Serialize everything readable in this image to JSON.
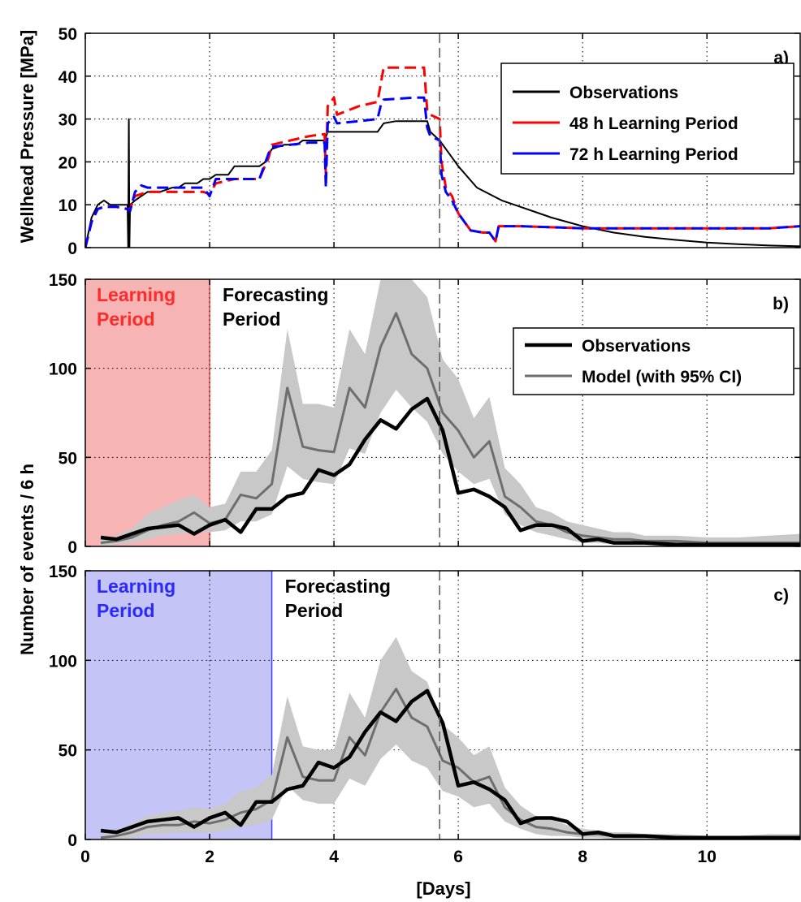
{
  "chart_data": {
    "type": "line",
    "xlabel": "[Days]",
    "x_ticks": [
      0,
      2,
      4,
      6,
      8,
      10
    ],
    "xlim": [
      0,
      11.5
    ],
    "forecast_marker_day": 5.7,
    "panels": [
      {
        "id": "a",
        "tag": "a)",
        "ylabel": "Wellhead Pressure [MPa]",
        "ylim": [
          0,
          50
        ],
        "y_ticks": [
          0,
          10,
          20,
          30,
          40,
          50
        ],
        "legend_position": "top-right",
        "series": [
          {
            "name": "Observations",
            "color": "#000000",
            "style": "solid",
            "x": [
              0,
              0.1,
              0.2,
              0.3,
              0.4,
              0.5,
              0.6,
              0.68,
              0.69,
              0.7,
              0.71,
              0.72,
              0.8,
              0.9,
              1.0,
              1.2,
              1.4,
              1.5,
              1.6,
              1.8,
              1.9,
              2.0,
              2.1,
              2.3,
              2.4,
              2.6,
              2.8,
              2.9,
              3.0,
              3.2,
              3.4,
              3.5,
              3.7,
              3.85,
              3.9,
              4.0,
              4.2,
              4.4,
              4.5,
              4.7,
              4.8,
              5.0,
              5.2,
              5.4,
              5.5,
              5.55,
              5.7,
              5.9,
              6.0,
              6.3,
              6.7,
              7.0,
              7.5,
              8.0,
              8.5,
              9.0,
              9.5,
              10.0,
              10.5,
              11.0,
              11.5
            ],
            "y": [
              0,
              7,
              10,
              11,
              10,
              10,
              10,
              10,
              0,
              30,
              0,
              10,
              11,
              12,
              13,
              13,
              14,
              14,
              15,
              15,
              16,
              16,
              17,
              17,
              19,
              19,
              19,
              20,
              23,
              24,
              24,
              25,
              25,
              25,
              27,
              27,
              27,
              27,
              27,
              27,
              29,
              29.5,
              29.5,
              29.5,
              29.5,
              27,
              25,
              21,
              19,
              14,
              11,
              9.5,
              7,
              5,
              3.5,
              2.5,
              1.8,
              1.2,
              0.8,
              0.5,
              0.3
            ]
          },
          {
            "name": "48 h Learning Period",
            "color": "#ff0000",
            "style": "dashed",
            "x": [
              0,
              0.1,
              0.2,
              0.3,
              0.5,
              0.68,
              0.72,
              0.8,
              1.0,
              1.4,
              1.9,
              2.0,
              2.1,
              2.4,
              2.8,
              2.95,
              3.0,
              3.3,
              3.6,
              3.85,
              3.87,
              3.9,
              4.0,
              4.05,
              4.4,
              4.7,
              4.75,
              4.8,
              5.3,
              5.45,
              5.5,
              5.55,
              5.7,
              5.73,
              5.8,
              5.9,
              6.0,
              6.2,
              6.4,
              6.5,
              6.6,
              6.65,
              7.0,
              8.0,
              9.0,
              10.0,
              11.0,
              11.5
            ],
            "y": [
              0,
              6,
              9,
              9.5,
              9.5,
              9,
              9,
              12,
              13,
              13,
              13,
              12.5,
              15,
              16,
              16,
              21,
              24,
              25,
              26,
              26.5,
              17,
              33,
              35,
              31,
              33,
              34,
              38,
              42,
              42,
              42,
              32,
              31,
              30,
              20,
              14,
              12,
              8,
              4,
              3.5,
              3.5,
              1.5,
              5,
              5,
              4.5,
              4.5,
              4.5,
              4.5,
              5
            ]
          },
          {
            "name": "72 h Learning Period",
            "color": "#0000ff",
            "style": "dashed",
            "x": [
              0,
              0.1,
              0.2,
              0.3,
              0.5,
              0.68,
              0.72,
              0.8,
              0.9,
              1.0,
              1.4,
              1.9,
              2.0,
              2.1,
              2.4,
              2.8,
              2.95,
              3.0,
              3.3,
              3.6,
              3.85,
              3.87,
              3.9,
              4.0,
              4.05,
              4.4,
              4.7,
              4.75,
              4.8,
              5.3,
              5.45,
              5.5,
              5.55,
              5.7,
              5.73,
              5.8,
              5.9,
              6.0,
              6.2,
              6.4,
              6.5,
              6.6,
              6.65,
              7.0,
              8.0,
              9.0,
              10.0,
              11.0,
              11.5
            ],
            "y": [
              0,
              6,
              9,
              9.5,
              9.5,
              9,
              8.5,
              13,
              14.5,
              14,
              14,
              14,
              12,
              16,
              16,
              16,
              22,
              23.5,
              24,
              24.5,
              24.5,
              14,
              29,
              30.5,
              29,
              29.5,
              30,
              33,
              34.5,
              35,
              35,
              28,
              26,
              25,
              17,
              13,
              11,
              8,
              4,
              3.5,
              3.5,
              1.5,
              5,
              5,
              4.5,
              4.5,
              4.5,
              4.5,
              5
            ]
          }
        ]
      },
      {
        "id": "b",
        "tag": "b)",
        "ylim": [
          0,
          150
        ],
        "y_ticks": [
          0,
          50,
          100,
          150
        ],
        "learning_period": {
          "end": 2,
          "label_line1": "Learning",
          "label_line2": "Period",
          "fill": "#f7b4b4",
          "edge": "#ff4040",
          "text_color": "#ff2a2a"
        },
        "forecast_label_line1": "Forecasting",
        "forecast_label_line2": "Period",
        "legend_position": "top-right",
        "series": [
          {
            "name": "Observations",
            "color": "#000000",
            "x": [
              0.25,
              0.5,
              0.75,
              1.0,
              1.25,
              1.5,
              1.75,
              2.0,
              2.25,
              2.5,
              2.75,
              3.0,
              3.25,
              3.5,
              3.75,
              4.0,
              4.25,
              4.5,
              4.75,
              5.0,
              5.25,
              5.5,
              5.75,
              6.0,
              6.25,
              6.5,
              6.75,
              7.0,
              7.25,
              7.5,
              7.75,
              8.0,
              8.25,
              8.5,
              8.75,
              9.0,
              9.5,
              10.0,
              10.5,
              11.0,
              11.5
            ],
            "y": [
              5,
              4,
              7,
              10,
              11,
              12,
              7,
              12,
              15,
              8,
              21,
              21,
              28,
              30,
              43,
              40,
              46,
              60,
              71,
              66,
              77,
              83,
              65,
              30,
              32,
              28,
              22,
              9,
              12,
              12,
              10,
              3,
              4,
              2,
              2,
              2,
              1,
              1,
              1,
              1,
              1
            ]
          },
          {
            "name": "Model (with 95% CI)",
            "color": "#6e6e6e",
            "x": [
              0.25,
              0.5,
              0.75,
              1.0,
              1.25,
              1.5,
              1.75,
              2.0,
              2.25,
              2.5,
              2.75,
              3.0,
              3.25,
              3.5,
              3.75,
              4.0,
              4.25,
              4.5,
              4.75,
              5.0,
              5.25,
              5.5,
              5.75,
              6.0,
              6.25,
              6.5,
              6.75,
              7.0,
              7.25,
              7.5,
              7.75,
              8.0,
              8.25,
              8.5,
              8.75,
              9.0,
              9.5,
              10.0,
              10.5,
              11.0,
              11.5
            ],
            "y": [
              2,
              3,
              5,
              9,
              12,
              14,
              19,
              13,
              15,
              29,
              27,
              35,
              89,
              56,
              54,
              53,
              89,
              78,
              112,
              131,
              108,
              100,
              75,
              65,
              50,
              59,
              28,
              22,
              14,
              12,
              8,
              6,
              5,
              4,
              4,
              3,
              3,
              2,
              2,
              2,
              2
            ],
            "ci_low": [
              0,
              1,
              2,
              4,
              6,
              7,
              8,
              8,
              9,
              14,
              14,
              18,
              45,
              38,
              36,
              35,
              55,
              52,
              75,
              88,
              78,
              70,
              52,
              42,
              35,
              38,
              18,
              12,
              8,
              6,
              4,
              2,
              2,
              1,
              1,
              1,
              1,
              0,
              0,
              0,
              0
            ],
            "ci_high": [
              4,
              6,
              10,
              18,
              22,
              26,
              29,
              22,
              24,
              42,
              42,
              54,
              122,
              80,
              80,
              78,
              122,
              108,
              150,
              150,
              150,
              140,
              105,
              94,
              72,
              84,
              44,
              35,
              22,
              19,
              14,
              12,
              10,
              8,
              8,
              6,
              6,
              5,
              5,
              6,
              7
            ]
          }
        ]
      },
      {
        "id": "c",
        "tag": "c)",
        "ylim": [
          0,
          150
        ],
        "y_ticks": [
          0,
          50,
          100,
          150
        ],
        "learning_period": {
          "end": 3,
          "label_line1": "Learning",
          "label_line2": "Period",
          "fill": "#c4c4f7",
          "edge": "#4040ff",
          "text_color": "#2a2aff"
        },
        "forecast_label_line1": "Forecasting",
        "forecast_label_line2": "Period",
        "series": [
          {
            "name": "Observations",
            "color": "#000000",
            "x": [
              0.25,
              0.5,
              0.75,
              1.0,
              1.25,
              1.5,
              1.75,
              2.0,
              2.25,
              2.5,
              2.75,
              3.0,
              3.25,
              3.5,
              3.75,
              4.0,
              4.25,
              4.5,
              4.75,
              5.0,
              5.25,
              5.5,
              5.75,
              6.0,
              6.25,
              6.5,
              6.75,
              7.0,
              7.25,
              7.5,
              7.75,
              8.0,
              8.25,
              8.5,
              8.75,
              9.0,
              9.5,
              10.0,
              10.5,
              11.0,
              11.5
            ],
            "y": [
              5,
              4,
              7,
              10,
              11,
              12,
              7,
              12,
              15,
              8,
              21,
              21,
              28,
              30,
              43,
              40,
              46,
              60,
              71,
              66,
              77,
              83,
              65,
              30,
              32,
              28,
              22,
              9,
              12,
              12,
              10,
              3,
              4,
              2,
              2,
              2,
              1,
              1,
              1,
              1,
              1
            ]
          },
          {
            "name": "Model (with 95% CI)",
            "color": "#6e6e6e",
            "x": [
              0.25,
              0.5,
              0.75,
              1.0,
              1.25,
              1.5,
              1.75,
              2.0,
              2.25,
              2.5,
              2.75,
              3.0,
              3.25,
              3.5,
              3.75,
              4.0,
              4.25,
              4.5,
              4.75,
              5.0,
              5.25,
              5.5,
              5.75,
              6.0,
              6.25,
              6.5,
              6.75,
              7.0,
              7.25,
              7.5,
              7.75,
              8.0,
              8.25,
              8.5,
              8.75,
              9.0,
              9.5,
              10.0,
              10.5,
              11.0,
              11.5
            ],
            "y": [
              1,
              2,
              4,
              7,
              8,
              8,
              10,
              9,
              11,
              15,
              17,
              22,
              57,
              35,
              33,
              33,
              57,
              47,
              71,
              84,
              68,
              63,
              44,
              40,
              32,
              35,
              18,
              11,
              7,
              6,
              4,
              3,
              3,
              2,
              2,
              2,
              1,
              1,
              1,
              1,
              1
            ],
            "ci_low": [
              0,
              0,
              1,
              3,
              3,
              4,
              4,
              4,
              5,
              7,
              8,
              11,
              30,
              22,
              20,
              20,
              34,
              30,
              45,
              53,
              44,
              40,
              27,
              24,
              18,
              20,
              10,
              6,
              3,
              2,
              2,
              1,
              1,
              0,
              0,
              0,
              0,
              0,
              0,
              0,
              0
            ],
            "ci_high": [
              2,
              5,
              9,
              13,
              15,
              16,
              18,
              17,
              20,
              27,
              29,
              36,
              80,
              52,
              50,
              50,
              82,
              68,
              100,
              113,
              94,
              88,
              64,
              57,
              47,
              52,
              29,
              19,
              13,
              11,
              8,
              6,
              5,
              4,
              4,
              3,
              3,
              2,
              2,
              3,
              3
            ]
          }
        ]
      }
    ],
    "shared_ylabel_bc": "Number of events / 6 h"
  }
}
